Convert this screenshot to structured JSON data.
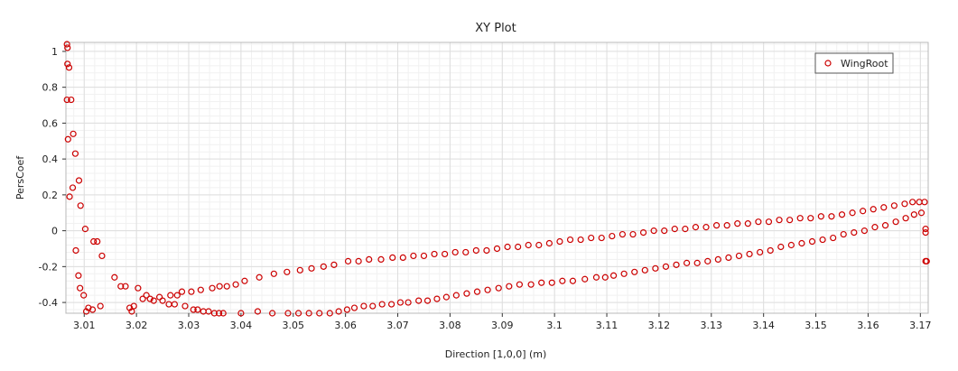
{
  "chart_data": {
    "type": "scatter",
    "title": "XY Plot",
    "xlabel": "Direction [1,0,0] (m)",
    "ylabel": "PersCoef",
    "xlim": [
      3.0065,
      3.1715
    ],
    "ylim": [
      -0.46,
      1.05
    ],
    "xticks": [
      3.01,
      3.02,
      3.03,
      3.04,
      3.05,
      3.06,
      3.07,
      3.08,
      3.09,
      3.1,
      3.11,
      3.12,
      3.13,
      3.14,
      3.15,
      3.16,
      3.17
    ],
    "xtick_labels": [
      "3.01",
      "3.02",
      "3.03",
      "3.04",
      "3.05",
      "3.06",
      "3.07",
      "3.08",
      "3.09",
      "3.1",
      "3.11",
      "3.12",
      "3.13",
      "3.14",
      "3.15",
      "3.16",
      "3.17"
    ],
    "yticks": [
      -0.4,
      -0.2,
      0,
      0.2,
      0.4,
      0.6,
      0.8,
      1
    ],
    "ytick_labels": [
      "-0.4",
      "-0.2",
      "0",
      "0.2",
      "0.4",
      "0.6",
      "0.8",
      "1"
    ],
    "grid": true,
    "legend_position": "top-right",
    "marker_color": "#cc0000",
    "series": [
      {
        "name": "WingRoot",
        "points": [
          [
            3.0067,
            1.04
          ],
          [
            3.0068,
            1.02
          ],
          [
            3.0068,
            0.93
          ],
          [
            3.0071,
            0.91
          ],
          [
            3.0067,
            0.73
          ],
          [
            3.0075,
            0.73
          ],
          [
            3.0069,
            0.51
          ],
          [
            3.0079,
            0.54
          ],
          [
            3.0072,
            0.19
          ],
          [
            3.0078,
            0.24
          ],
          [
            3.0083,
            0.43
          ],
          [
            3.009,
            0.28
          ],
          [
            3.0093,
            0.14
          ],
          [
            3.0102,
            0.01
          ],
          [
            3.0084,
            -0.11
          ],
          [
            3.0089,
            -0.25
          ],
          [
            3.0092,
            -0.32
          ],
          [
            3.0099,
            -0.36
          ],
          [
            3.0104,
            -0.45
          ],
          [
            3.0108,
            -0.43
          ],
          [
            3.0116,
            -0.44
          ],
          [
            3.0118,
            -0.06
          ],
          [
            3.0125,
            -0.06
          ],
          [
            3.0134,
            -0.14
          ],
          [
            3.0131,
            -0.42
          ],
          [
            3.0158,
            -0.26
          ],
          [
            3.017,
            -0.31
          ],
          [
            3.0179,
            -0.31
          ],
          [
            3.0187,
            -0.43
          ],
          [
            3.0191,
            -0.45
          ],
          [
            3.0195,
            -0.42
          ],
          [
            3.0203,
            -0.32
          ],
          [
            3.0212,
            -0.38
          ],
          [
            3.0219,
            -0.36
          ],
          [
            3.0226,
            -0.38
          ],
          [
            3.0233,
            -0.39
          ],
          [
            3.0244,
            -0.37
          ],
          [
            3.025,
            -0.39
          ],
          [
            3.0262,
            -0.41
          ],
          [
            3.0265,
            -0.36
          ],
          [
            3.0273,
            -0.41
          ],
          [
            3.0278,
            -0.36
          ],
          [
            3.0287,
            -0.34
          ],
          [
            3.0293,
            -0.42
          ],
          [
            3.0305,
            -0.34
          ],
          [
            3.0309,
            -0.44
          ],
          [
            3.0317,
            -0.44
          ],
          [
            3.0323,
            -0.33
          ],
          [
            3.0328,
            -0.45
          ],
          [
            3.0338,
            -0.45
          ],
          [
            3.0345,
            -0.32
          ],
          [
            3.0349,
            -0.46
          ],
          [
            3.0358,
            -0.46
          ],
          [
            3.0359,
            -0.31
          ],
          [
            3.0366,
            -0.46
          ],
          [
            3.0373,
            -0.31
          ],
          [
            3.039,
            -0.3
          ],
          [
            3.04,
            -0.46
          ],
          [
            3.0407,
            -0.28
          ],
          [
            3.0432,
            -0.45
          ],
          [
            3.0435,
            -0.26
          ],
          [
            3.046,
            -0.46
          ],
          [
            3.0463,
            -0.24
          ],
          [
            3.0488,
            -0.23
          ],
          [
            3.049,
            -0.46
          ],
          [
            3.051,
            -0.46
          ],
          [
            3.0513,
            -0.22
          ],
          [
            3.053,
            -0.46
          ],
          [
            3.0535,
            -0.21
          ],
          [
            3.055,
            -0.46
          ],
          [
            3.0558,
            -0.2
          ],
          [
            3.057,
            -0.46
          ],
          [
            3.0578,
            -0.19
          ],
          [
            3.0587,
            -0.45
          ],
          [
            3.0603,
            -0.44
          ],
          [
            3.0605,
            -0.17
          ],
          [
            3.0617,
            -0.43
          ],
          [
            3.0625,
            -0.17
          ],
          [
            3.0635,
            -0.42
          ],
          [
            3.0645,
            -0.16
          ],
          [
            3.0652,
            -0.42
          ],
          [
            3.0668,
            -0.16
          ],
          [
            3.067,
            -0.41
          ],
          [
            3.0688,
            -0.41
          ],
          [
            3.069,
            -0.15
          ],
          [
            3.0705,
            -0.4
          ],
          [
            3.071,
            -0.15
          ],
          [
            3.072,
            -0.4
          ],
          [
            3.073,
            -0.14
          ],
          [
            3.074,
            -0.39
          ],
          [
            3.075,
            -0.14
          ],
          [
            3.0757,
            -0.39
          ],
          [
            3.077,
            -0.13
          ],
          [
            3.0775,
            -0.38
          ],
          [
            3.079,
            -0.13
          ],
          [
            3.0793,
            -0.37
          ],
          [
            3.081,
            -0.12
          ],
          [
            3.0812,
            -0.36
          ],
          [
            3.083,
            -0.12
          ],
          [
            3.0832,
            -0.35
          ],
          [
            3.085,
            -0.11
          ],
          [
            3.0852,
            -0.34
          ],
          [
            3.087,
            -0.11
          ],
          [
            3.0872,
            -0.33
          ],
          [
            3.089,
            -0.1
          ],
          [
            3.0893,
            -0.32
          ],
          [
            3.091,
            -0.09
          ],
          [
            3.0913,
            -0.31
          ],
          [
            3.093,
            -0.09
          ],
          [
            3.0933,
            -0.3
          ],
          [
            3.095,
            -0.08
          ],
          [
            3.0955,
            -0.3
          ],
          [
            3.097,
            -0.08
          ],
          [
            3.0975,
            -0.29
          ],
          [
            3.099,
            -0.07
          ],
          [
            3.0995,
            -0.29
          ],
          [
            3.101,
            -0.06
          ],
          [
            3.1015,
            -0.28
          ],
          [
            3.103,
            -0.05
          ],
          [
            3.1035,
            -0.28
          ],
          [
            3.105,
            -0.05
          ],
          [
            3.1058,
            -0.27
          ],
          [
            3.107,
            -0.04
          ],
          [
            3.108,
            -0.26
          ],
          [
            3.109,
            -0.04
          ],
          [
            3.1097,
            -0.26
          ],
          [
            3.111,
            -0.03
          ],
          [
            3.1113,
            -0.25
          ],
          [
            3.113,
            -0.02
          ],
          [
            3.1133,
            -0.24
          ],
          [
            3.115,
            -0.02
          ],
          [
            3.1153,
            -0.23
          ],
          [
            3.117,
            -0.01
          ],
          [
            3.1173,
            -0.22
          ],
          [
            3.119,
            0.0
          ],
          [
            3.1193,
            -0.21
          ],
          [
            3.121,
            0.0
          ],
          [
            3.1213,
            -0.2
          ],
          [
            3.123,
            0.01
          ],
          [
            3.1233,
            -0.19
          ],
          [
            3.125,
            0.01
          ],
          [
            3.1253,
            -0.18
          ],
          [
            3.127,
            0.02
          ],
          [
            3.1273,
            -0.18
          ],
          [
            3.129,
            0.02
          ],
          [
            3.1293,
            -0.17
          ],
          [
            3.131,
            0.03
          ],
          [
            3.1313,
            -0.16
          ],
          [
            3.133,
            0.03
          ],
          [
            3.1333,
            -0.15
          ],
          [
            3.135,
            0.04
          ],
          [
            3.1353,
            -0.14
          ],
          [
            3.137,
            0.04
          ],
          [
            3.1373,
            -0.13
          ],
          [
            3.139,
            0.05
          ],
          [
            3.1393,
            -0.12
          ],
          [
            3.141,
            0.05
          ],
          [
            3.1413,
            -0.11
          ],
          [
            3.143,
            0.06
          ],
          [
            3.1433,
            -0.09
          ],
          [
            3.145,
            0.06
          ],
          [
            3.1453,
            -0.08
          ],
          [
            3.147,
            0.07
          ],
          [
            3.1473,
            -0.07
          ],
          [
            3.149,
            0.07
          ],
          [
            3.1493,
            -0.06
          ],
          [
            3.151,
            0.08
          ],
          [
            3.1513,
            -0.05
          ],
          [
            3.153,
            0.08
          ],
          [
            3.1533,
            -0.04
          ],
          [
            3.155,
            0.09
          ],
          [
            3.1553,
            -0.02
          ],
          [
            3.157,
            0.1
          ],
          [
            3.1573,
            -0.01
          ],
          [
            3.159,
            0.11
          ],
          [
            3.1593,
            0.0
          ],
          [
            3.161,
            0.12
          ],
          [
            3.1613,
            0.02
          ],
          [
            3.163,
            0.13
          ],
          [
            3.1633,
            0.03
          ],
          [
            3.165,
            0.14
          ],
          [
            3.1653,
            0.05
          ],
          [
            3.167,
            0.15
          ],
          [
            3.1672,
            0.07
          ],
          [
            3.1685,
            0.16
          ],
          [
            3.1688,
            0.09
          ],
          [
            3.1698,
            0.16
          ],
          [
            3.1702,
            0.1
          ],
          [
            3.1708,
            0.16
          ],
          [
            3.171,
            0.01
          ],
          [
            3.171,
            -0.01
          ],
          [
            3.171,
            -0.17
          ],
          [
            3.1712,
            -0.17
          ]
        ]
      }
    ]
  }
}
